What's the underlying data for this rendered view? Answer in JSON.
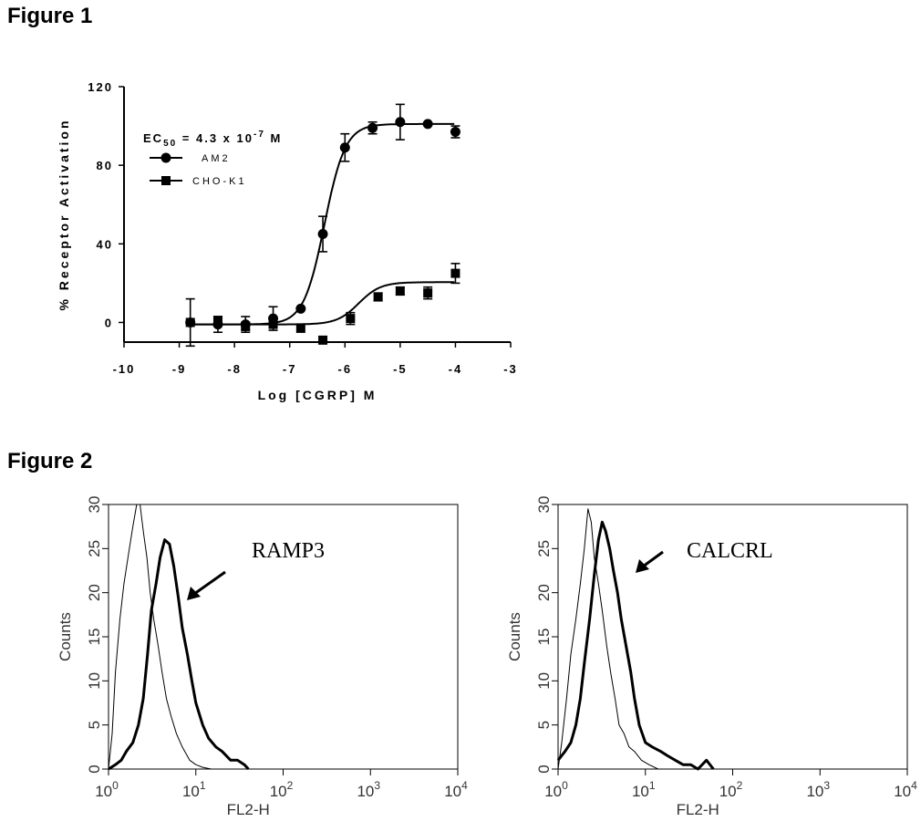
{
  "figure1": {
    "title": "Figure 1"
  },
  "figure2": {
    "title": "Figure 2"
  },
  "chart_data": [
    {
      "type": "line",
      "xlabel": "Log [CGRP] M",
      "ylabel": "% Receptor Activation",
      "xlim": [
        -10,
        -3
      ],
      "ylim": [
        -10,
        120
      ],
      "x_ticks": [
        "-10",
        "-9",
        "-8",
        "-7",
        "-6",
        "-5",
        "-4",
        "-3"
      ],
      "y_ticks": [
        "0",
        "40",
        "80",
        "120"
      ],
      "annotation": {
        "prefix": "EC",
        "sub": "50",
        "mid": " = 4.3 x 10",
        "sup": "-7",
        "suffix": " M"
      },
      "legend_placement": "top-left",
      "series": [
        {
          "name": "AM2",
          "marker": "circle",
          "x": [
            -8.8,
            -8.3,
            -7.8,
            -7.3,
            -6.8,
            -6.4,
            -6.0,
            -5.5,
            -5.0,
            -4.5,
            -4.0
          ],
          "y": [
            0,
            -1,
            -1,
            2,
            7,
            45,
            89,
            99,
            102,
            101,
            97
          ],
          "err": [
            12,
            4,
            4,
            6,
            1,
            9,
            7,
            3,
            9,
            1,
            3
          ],
          "fit": {
            "bottom": -1,
            "top": 101,
            "logEC50": -6.37,
            "hill": 2.3
          }
        },
        {
          "name": "CHO-K1",
          "marker": "square",
          "x": [
            -8.8,
            -8.3,
            -7.8,
            -7.3,
            -6.8,
            -6.4,
            -5.9,
            -5.4,
            -5.0,
            -4.5,
            -4.0
          ],
          "y": [
            0,
            1,
            -2,
            -1,
            -3,
            -9,
            2,
            13,
            16,
            15,
            25
          ],
          "err": [
            1,
            2,
            2,
            1,
            1,
            1,
            3,
            2,
            2,
            3,
            5
          ],
          "fit": {
            "bottom": -1,
            "top": 20.5,
            "logEC50": -5.75,
            "hill": 2.2
          }
        }
      ]
    },
    {
      "type": "line",
      "xlabel": "FL2-H",
      "ylabel": "Counts",
      "xscale": "log",
      "xlim": [
        1,
        10000
      ],
      "ylim": [
        0,
        30
      ],
      "x_tick_exponents": [
        "0",
        "1",
        "2",
        "3",
        "4"
      ],
      "x_tick_base": "10",
      "y_ticks": [
        "0",
        "5",
        "10",
        "15",
        "20",
        "25",
        "30"
      ],
      "annotation": "RAMP3",
      "series": [
        {
          "style": "thin",
          "x": [
            1.0,
            1.1,
            1.2,
            1.35,
            1.5,
            1.7,
            1.9,
            2.1,
            2.3,
            2.5,
            2.75,
            3.0,
            3.3,
            3.7,
            4.1,
            4.6,
            5.2,
            6.0,
            7.0,
            8.5,
            10,
            12,
            15
          ],
          "y": [
            0,
            4,
            11,
            17,
            21,
            24.5,
            27.5,
            30,
            30,
            27,
            24,
            20,
            17,
            14,
            11,
            8,
            6,
            4,
            2.5,
            1,
            0.5,
            0.2,
            0
          ]
        },
        {
          "style": "thick",
          "x": [
            1.0,
            1.2,
            1.4,
            1.6,
            1.9,
            2.2,
            2.5,
            2.8,
            3.1,
            3.5,
            3.9,
            4.4,
            5.0,
            5.6,
            6.3,
            7.0,
            8.0,
            9.0,
            10,
            12,
            14,
            17,
            20,
            25,
            30,
            36,
            40
          ],
          "y": [
            0,
            0.5,
            1,
            2,
            3,
            5,
            8,
            13,
            18,
            21,
            24,
            26,
            25.5,
            23,
            19.5,
            16,
            13,
            10,
            7.5,
            5,
            3.5,
            2.5,
            2,
            1,
            1,
            0.5,
            0
          ]
        }
      ]
    },
    {
      "type": "line",
      "xlabel": "FL2-H",
      "ylabel": "Counts",
      "xscale": "log",
      "xlim": [
        1,
        10000
      ],
      "ylim": [
        0,
        30
      ],
      "x_tick_exponents": [
        "0",
        "1",
        "2",
        "3",
        "4"
      ],
      "x_tick_base": "10",
      "y_ticks": [
        "0",
        "5",
        "10",
        "15",
        "20",
        "25",
        "30"
      ],
      "annotation": "CALCRL",
      "series": [
        {
          "style": "thin",
          "x": [
            1.0,
            1.1,
            1.25,
            1.4,
            1.6,
            1.8,
            2.0,
            2.2,
            2.4,
            2.6,
            2.9,
            3.2,
            3.6,
            4.0,
            4.5,
            5.0,
            5.7,
            6.5,
            7.5,
            9.0,
            11,
            14
          ],
          "y": [
            0,
            3,
            8,
            13,
            17,
            21,
            25,
            29.5,
            28,
            24,
            21,
            18,
            14,
            11,
            8,
            5,
            4,
            2.5,
            2,
            1,
            0.5,
            0
          ]
        },
        {
          "style": "thick",
          "x": [
            1.0,
            1.2,
            1.4,
            1.6,
            1.8,
            2.0,
            2.3,
            2.6,
            2.9,
            3.2,
            3.5,
            3.9,
            4.3,
            4.8,
            5.3,
            6.0,
            6.8,
            7.5,
            8.5,
            10,
            12,
            15,
            18,
            22,
            27,
            33,
            40,
            50,
            55,
            60
          ],
          "y": [
            1,
            2,
            3,
            5,
            8,
            12,
            17,
            22,
            26,
            28,
            27,
            25,
            22.5,
            20,
            17,
            14,
            11,
            8,
            5,
            3,
            2.5,
            2,
            1.5,
            1,
            0.5,
            0.5,
            0,
            1,
            0.5,
            0
          ]
        }
      ]
    }
  ]
}
